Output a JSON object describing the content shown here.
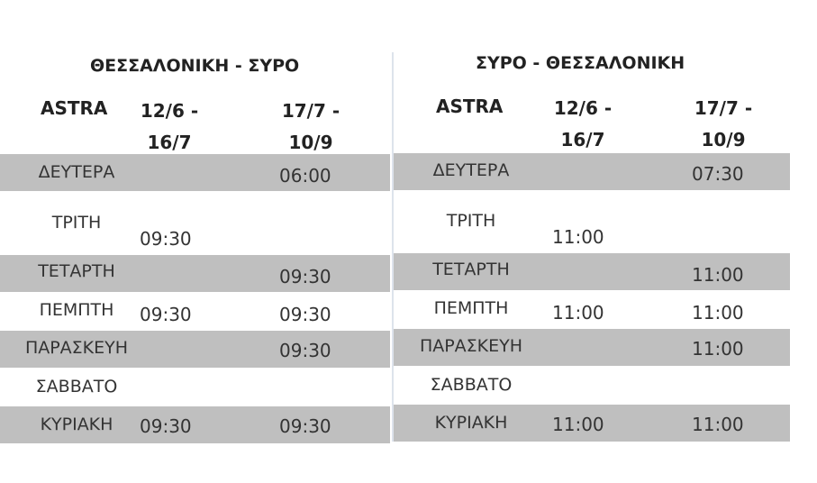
{
  "left": {
    "title": "ΘΕΣΣΑΛΟΝΙΚΗ  -  ΣΥΡΟ",
    "operator": "ASTRA",
    "period1": [
      "12/6 -",
      "16/7"
    ],
    "period2": [
      "17/7 -",
      "10/9"
    ],
    "rows": [
      {
        "day": "ΔΕΥΤΕΡΑ",
        "t1": "",
        "t2": "06:00"
      },
      {
        "day": "ΤΡΙΤΗ",
        "t1": "09:30",
        "t2": ""
      },
      {
        "day": "ΤΕΤΑΡΤΗ",
        "t1": "",
        "t2": "09:30"
      },
      {
        "day": "ΠΕΜΠΤΗ",
        "t1": "09:30",
        "t2": "09:30"
      },
      {
        "day": "ΠΑΡΑΣΚΕΥΗ",
        "t1": "",
        "t2": "09:30"
      },
      {
        "day": "ΣΑΒΒΑΤΟ",
        "t1": "",
        "t2": ""
      },
      {
        "day": "ΚΥΡΙΑΚΗ",
        "t1": "09:30",
        "t2": "09:30"
      }
    ]
  },
  "right": {
    "title": "ΣΥΡΟ   -  ΘΕΣΣΑΛΟΝΙΚΗ",
    "operator": "ASTRA",
    "period1": [
      "12/6 -",
      "16/7"
    ],
    "period2": [
      "17/7 -",
      "10/9"
    ],
    "rows": [
      {
        "day": "ΔΕΥΤΕΡΑ",
        "t1": "",
        "t2": "07:30"
      },
      {
        "day": "ΤΡΙΤΗ",
        "t1": "11:00",
        "t2": ""
      },
      {
        "day": "ΤΕΤΑΡΤΗ",
        "t1": "",
        "t2": "11:00"
      },
      {
        "day": "ΠΕΜΠΤΗ",
        "t1": "11:00",
        "t2": "11:00"
      },
      {
        "day": "ΠΑΡΑΣΚΕΥΗ",
        "t1": "",
        "t2": "11:00"
      },
      {
        "day": "ΣΑΒΒΑΤΟ",
        "t1": "",
        "t2": ""
      },
      {
        "day": "ΚΥΡΙΑΚΗ",
        "t1": "11:00",
        "t2": "11:00"
      }
    ]
  },
  "colors": {
    "row_shade": "#bfbfbf"
  }
}
